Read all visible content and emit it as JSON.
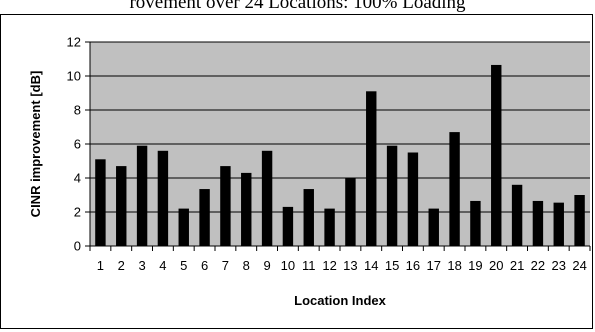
{
  "top_caption": "rovement over 24 Locations: 100% Loading",
  "chart_data": {
    "type": "bar",
    "title": "",
    "xlabel": "Location Index",
    "ylabel": "CINR improvement [dB]",
    "ylim": [
      0,
      12
    ],
    "yticks": [
      0,
      2,
      4,
      6,
      8,
      10,
      12
    ],
    "grid": true,
    "legend": "none",
    "categories": [
      "1",
      "2",
      "3",
      "4",
      "5",
      "6",
      "7",
      "8",
      "9",
      "10",
      "11",
      "12",
      "13",
      "14",
      "15",
      "16",
      "17",
      "18",
      "19",
      "20",
      "21",
      "22",
      "23",
      "24"
    ],
    "series": [
      {
        "values": [
          5.1,
          4.7,
          5.9,
          5.6,
          2.2,
          3.35,
          4.7,
          4.3,
          5.6,
          2.3,
          3.35,
          2.2,
          4.0,
          9.1,
          5.9,
          5.5,
          2.2,
          6.7,
          2.65,
          10.65,
          3.6,
          2.65,
          2.55,
          3.0
        ]
      }
    ],
    "colors": {
      "plot_bg": "#c0c0c0",
      "bar": "#000000",
      "grid": "#000000"
    }
  }
}
